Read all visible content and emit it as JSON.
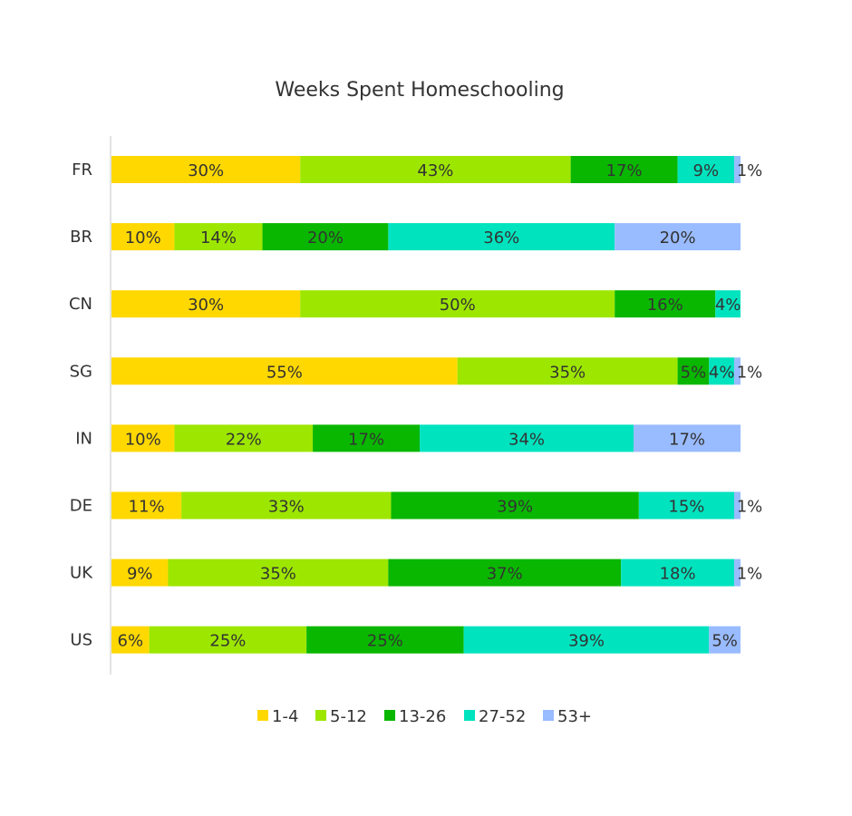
{
  "chart_data": {
    "type": "bar",
    "orientation": "horizontal",
    "stacked": true,
    "title": "Weeks Spent Homeschooling",
    "categories": [
      "FR",
      "BR",
      "CN",
      "SG",
      "IN",
      "DE",
      "UK",
      "US"
    ],
    "series": [
      {
        "name": "1-4",
        "color": "#FFD800",
        "values": [
          30,
          10,
          30,
          55,
          10,
          11,
          9,
          6
        ]
      },
      {
        "name": "5-12",
        "color": "#9DE600",
        "values": [
          43,
          14,
          50,
          35,
          22,
          33,
          35,
          25
        ]
      },
      {
        "name": "13-26",
        "color": "#0AB700",
        "values": [
          17,
          20,
          16,
          5,
          17,
          39,
          37,
          25
        ]
      },
      {
        "name": "27-52",
        "color": "#00E3BF",
        "values": [
          9,
          36,
          4,
          4,
          34,
          15,
          18,
          39
        ]
      },
      {
        "name": "53+",
        "color": "#99BBFF",
        "values": [
          1,
          20,
          0,
          1,
          17,
          1,
          1,
          5
        ]
      }
    ],
    "labels": [
      [
        "30%",
        "43%",
        "17%",
        "9%",
        "1%"
      ],
      [
        "10%",
        "14%",
        "20%",
        "36%",
        "20%"
      ],
      [
        "30%",
        "50%",
        "16%",
        "4%",
        ""
      ],
      [
        "55%",
        "35%",
        "5%",
        "4%",
        "1%"
      ],
      [
        "10%",
        "22%",
        "17%",
        "34%",
        "17%"
      ],
      [
        "11%",
        "33%",
        "39%",
        "15%",
        "1%"
      ],
      [
        "9%",
        "35%",
        "37%",
        "18%",
        "1%"
      ],
      [
        "6%",
        "25%",
        "25%",
        "39%",
        "5%"
      ]
    ],
    "legend_position": "bottom",
    "grid": false
  }
}
